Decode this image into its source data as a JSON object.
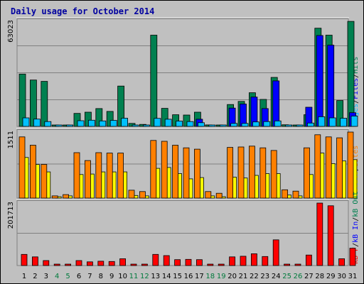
{
  "chart_data": {
    "type": "bar",
    "title": "Daily usage for October 2014",
    "days": [
      "1",
      "2",
      "3",
      "4",
      "5",
      "6",
      "7",
      "8",
      "9",
      "10",
      "11",
      "12",
      "13",
      "14",
      "15",
      "16",
      "17",
      "18",
      "19",
      "20",
      "21",
      "22",
      "23",
      "24",
      "25",
      "26",
      "27",
      "28",
      "29",
      "30",
      "31"
    ],
    "weekend_days": [
      "4",
      "5",
      "11",
      "12",
      "18",
      "19",
      "25",
      "26"
    ],
    "colors": {
      "background": "#c0c0c0",
      "frame": "#808080",
      "title": "#0000a0",
      "weekend_label": "#007a3c",
      "hits": "#008050",
      "files": "#0000ff",
      "pages": "#00c0ff",
      "sites": "#ff8000",
      "visits": "#ffff00",
      "kb_in": "#0000ff",
      "kb_out": "#008050",
      "kb_f": "#ff0000"
    },
    "panels": [
      {
        "name": "hits-files-pages",
        "max_label": "63023",
        "ymax": 63023,
        "right_labels": [
          {
            "text": "Pages",
            "color": "#00c0ff"
          },
          {
            "text": "/",
            "color": "#000000"
          },
          {
            "text": "Files",
            "color": "#0000ff"
          },
          {
            "text": "/",
            "color": "#000000"
          },
          {
            "text": "Hits",
            "color": "#008050"
          }
        ],
        "series": [
          {
            "name": "Hits",
            "color": "#008050",
            "values": [
              31400,
              27800,
              27000,
              400,
              400,
              7800,
              8500,
              10700,
              9000,
              24200,
              1800,
              1200,
              54700,
              10800,
              7000,
              6800,
              8500,
              900,
              600,
              13100,
              15000,
              20200,
              16200,
              29400,
              1000,
              700,
              7000,
              58900,
              54700,
              15500,
              63000
            ]
          },
          {
            "name": "Files",
            "color": "#0000ff",
            "values": [
              0,
              0,
              0,
              0,
              0,
              0,
              0,
              0,
              0,
              0,
              0,
              0,
              0,
              0,
              0,
              0,
              4300,
              0,
              0,
              11000,
              13400,
              17600,
              10700,
              27300,
              0,
              0,
              11500,
              54500,
              48700,
              0,
              8200
            ]
          },
          {
            "name": "Pages",
            "color": "#00c0ff",
            "values": [
              5100,
              4400,
              2900,
              200,
              200,
              3400,
              3700,
              3300,
              3600,
              4900,
              400,
              400,
              4800,
              4300,
              3200,
              2900,
              2200,
              100,
              100,
              1800,
              1800,
              2700,
              2900,
              3300,
              100,
              100,
              2000,
              5800,
              5100,
              4900,
              6200
            ]
          }
        ]
      },
      {
        "name": "sites-visits",
        "max_label": "1511",
        "ymax": 1511,
        "right_labels": [
          {
            "text": "Visits",
            "color": "#ffff00"
          },
          {
            "text": "/",
            "color": "#000000"
          },
          {
            "text": "Sites",
            "color": "#ff8000"
          }
        ],
        "series": [
          {
            "name": "Sites",
            "color": "#ff8000",
            "values": [
              1400,
              1210,
              770,
              50,
              80,
              1040,
              860,
              1040,
              1030,
              1030,
              180,
              150,
              1320,
              1300,
              1210,
              1150,
              1120,
              150,
              110,
              1160,
              1170,
              1190,
              1150,
              1090,
              190,
              160,
              1150,
              1450,
              1400,
              1380,
              1511
            ]
          },
          {
            "name": "Visits",
            "color": "#ffff00",
            "values": [
              930,
              770,
              600,
              30,
              50,
              540,
              550,
              600,
              600,
              600,
              60,
              50,
              680,
              700,
              560,
              440,
              470,
              50,
              30,
              480,
              460,
              520,
              560,
              560,
              70,
              50,
              540,
              1030,
              790,
              850,
              880
            ]
          }
        ]
      },
      {
        "name": "kb-f-in-out",
        "max_label": "201713",
        "ymax": 201713,
        "right_labels": [
          {
            "text": "kB F",
            "color": "#ff0000"
          },
          {
            "text": "/",
            "color": "#000000"
          },
          {
            "text": "kB In",
            "color": "#0000ff"
          },
          {
            "text": "/",
            "color": "#000000"
          },
          {
            "text": "kB Out",
            "color": "#008050"
          }
        ],
        "series": [
          {
            "name": "kB F",
            "color": "#ff0000",
            "values": [
              36000,
              28000,
              16000,
              2500,
              2500,
              16000,
              12000,
              14000,
              13000,
              22000,
              2500,
              2500,
              36000,
              32000,
              19000,
              20000,
              19000,
              2500,
              2500,
              28000,
              30000,
              38000,
              29000,
              83000,
              2500,
              2500,
              34000,
              201713,
              193000,
              22000,
              56000
            ]
          }
        ]
      }
    ]
  }
}
